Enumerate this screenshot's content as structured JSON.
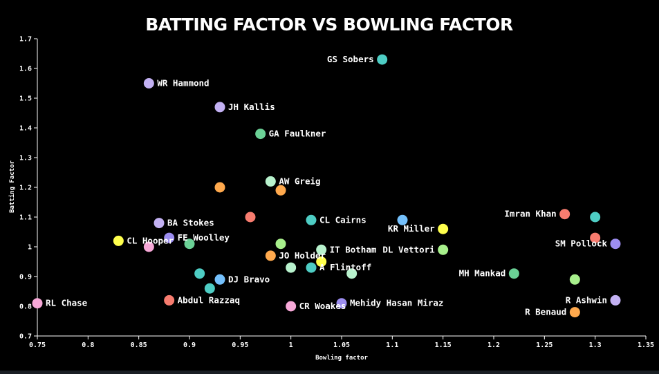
{
  "chart_data": {
    "type": "scatter",
    "title": "BATTING FACTOR VS BOWLING FACTOR",
    "xlabel": "Bowling factor",
    "ylabel": "Batting Factor",
    "xlim": [
      0.75,
      1.35
    ],
    "ylim": [
      0.7,
      1.7
    ],
    "xticks": [
      "0.75",
      "0.8",
      "0.85",
      "0.9",
      "0.95",
      "1",
      "1.05",
      "1.1",
      "1.15",
      "1.2",
      "1.25",
      "1.3",
      "1.35"
    ],
    "yticks": [
      "0.7",
      "0.8",
      "0.9",
      "1",
      "1.1",
      "1.2",
      "1.3",
      "1.4",
      "1.5",
      "1.6",
      "1.7"
    ],
    "grid": false,
    "points": [
      {
        "x": 1.09,
        "y": 1.63,
        "color": "#4ecdc4",
        "label": "GS Sobers",
        "label_side": "left"
      },
      {
        "x": 0.86,
        "y": 1.55,
        "color": "#c3b1f3",
        "label": "WR Hammond",
        "label_side": "right"
      },
      {
        "x": 0.93,
        "y": 1.47,
        "color": "#c3b1f3",
        "label": "JH Kallis",
        "label_side": "right"
      },
      {
        "x": 0.97,
        "y": 1.38,
        "color": "#6bd196",
        "label": "GA Faulkner",
        "label_side": "right"
      },
      {
        "x": 0.98,
        "y": 1.22,
        "color": "#b8f2cd",
        "label": "AW Greig",
        "label_side": "right"
      },
      {
        "x": 0.93,
        "y": 1.2,
        "color": "#ffa94d",
        "label": "",
        "label_side": "right"
      },
      {
        "x": 0.99,
        "y": 1.19,
        "color": "#ffa94d",
        "label": "",
        "label_side": "right"
      },
      {
        "x": 0.96,
        "y": 1.1,
        "color": "#f77c6f",
        "label": "",
        "label_side": "right"
      },
      {
        "x": 1.02,
        "y": 1.09,
        "color": "#4ecdc4",
        "label": "CL Cairns",
        "label_side": "right"
      },
      {
        "x": 1.11,
        "y": 1.09,
        "color": "#74c0fc",
        "label": "",
        "label_side": "right"
      },
      {
        "x": 1.15,
        "y": 1.06,
        "color": "#ffff4d",
        "label": "KR Miller",
        "label_side": "left"
      },
      {
        "x": 1.27,
        "y": 1.11,
        "color": "#f77c6f",
        "label": "Imran Khan",
        "label_side": "left"
      },
      {
        "x": 1.3,
        "y": 1.1,
        "color": "#4ecdc4",
        "label": "",
        "label_side": "right"
      },
      {
        "x": 1.3,
        "y": 1.03,
        "color": "#f77c6f",
        "label": "",
        "label_side": "right"
      },
      {
        "x": 1.32,
        "y": 1.01,
        "color": "#9c8df0",
        "label": "SM Pollock",
        "label_side": "left"
      },
      {
        "x": 0.87,
        "y": 1.08,
        "color": "#c3b1f3",
        "label": "BA Stokes",
        "label_side": "right"
      },
      {
        "x": 0.83,
        "y": 1.02,
        "color": "#ffff4d",
        "label": "CL Hooper",
        "label_side": "right"
      },
      {
        "x": 0.88,
        "y": 1.03,
        "color": "#9c8df0",
        "label": "FE Woolley",
        "label_side": "right"
      },
      {
        "x": 0.86,
        "y": 1.0,
        "color": "#f7a8d8",
        "label": "",
        "label_side": "right"
      },
      {
        "x": 0.9,
        "y": 1.01,
        "color": "#6bd196",
        "label": "",
        "label_side": "right"
      },
      {
        "x": 0.99,
        "y": 1.01,
        "color": "#a8f08c",
        "label": "",
        "label_side": "right"
      },
      {
        "x": 1.03,
        "y": 0.99,
        "color": "#b8f2cd",
        "label": "IT Botham",
        "label_side": "right"
      },
      {
        "x": 1.15,
        "y": 0.99,
        "color": "#a8f08c",
        "label": "DL Vettori",
        "label_side": "left"
      },
      {
        "x": 0.98,
        "y": 0.97,
        "color": "#ffa94d",
        "label": "JO Holder",
        "label_side": "right"
      },
      {
        "x": 1.03,
        "y": 0.95,
        "color": "#ffff4d",
        "label": "",
        "label_side": "right"
      },
      {
        "x": 1.0,
        "y": 0.93,
        "color": "#b8f2cd",
        "label": "",
        "label_side": "right"
      },
      {
        "x": 1.02,
        "y": 0.93,
        "color": "#4ecdc4",
        "label": "A Flintoff",
        "label_side": "right"
      },
      {
        "x": 1.06,
        "y": 0.91,
        "color": "#b8f2cd",
        "label": "",
        "label_side": "right"
      },
      {
        "x": 1.22,
        "y": 0.91,
        "color": "#6bd196",
        "label": "MH Mankad",
        "label_side": "left"
      },
      {
        "x": 1.28,
        "y": 0.89,
        "color": "#a8f08c",
        "label": "",
        "label_side": "right"
      },
      {
        "x": 0.91,
        "y": 0.91,
        "color": "#4ecdc4",
        "label": "",
        "label_side": "right"
      },
      {
        "x": 0.93,
        "y": 0.89,
        "color": "#74c0fc",
        "label": "DJ Bravo",
        "label_side": "right"
      },
      {
        "x": 0.92,
        "y": 0.86,
        "color": "#4ecdc4",
        "label": "",
        "label_side": "right"
      },
      {
        "x": 0.88,
        "y": 0.82,
        "color": "#f77c6f",
        "label": "Abdul Razzaq",
        "label_side": "right"
      },
      {
        "x": 0.75,
        "y": 0.81,
        "color": "#f7a8d8",
        "label": "RL Chase",
        "label_side": "right"
      },
      {
        "x": 1.0,
        "y": 0.8,
        "color": "#f7a8d8",
        "label": "CR Woakes",
        "label_side": "right"
      },
      {
        "x": 1.05,
        "y": 0.81,
        "color": "#9c8df0",
        "label": "Mehidy Hasan Miraz",
        "label_side": "right"
      },
      {
        "x": 1.32,
        "y": 0.82,
        "color": "#c3b1f3",
        "label": "R Ashwin",
        "label_side": "left"
      },
      {
        "x": 1.28,
        "y": 0.78,
        "color": "#ffa94d",
        "label": "R Benaud",
        "label_side": "left"
      }
    ]
  }
}
